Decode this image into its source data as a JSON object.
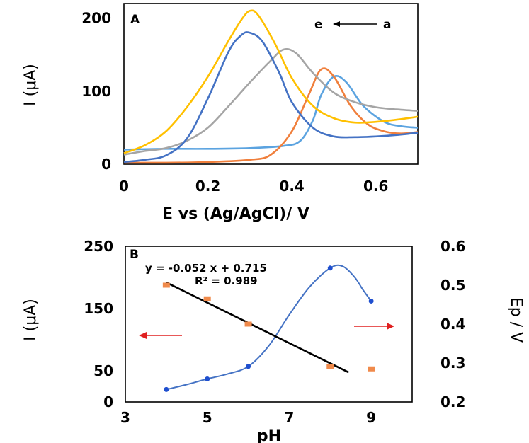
{
  "colors": {
    "a": "#5BA3E0",
    "b": "#F07F3C",
    "c": "#A5A5A5",
    "d": "#FFC000",
    "e": "#4472C4",
    "current": "#4472C4",
    "potential": "#F08A4B",
    "fit": "#000000",
    "arrow": "#E02020"
  },
  "chart_data": [
    {
      "type": "line",
      "panel_label": "A",
      "annotation": {
        "start": "e",
        "end": "a"
      },
      "xlabel": "E vs (Ag/AgCl)/ V",
      "ylabel": "I (μA)",
      "xlim": [
        0,
        0.7
      ],
      "ylim": [
        0,
        220
      ],
      "xticks": [
        "0",
        "0.2",
        "0.4",
        "0.6"
      ],
      "xtick_values": [
        0,
        0.2,
        0.4,
        0.6
      ],
      "yticks": [
        "0",
        "100",
        "200"
      ],
      "ytick_values": [
        0,
        100,
        200
      ],
      "series": [
        {
          "key": "a",
          "points": [
            [
              0,
              20
            ],
            [
              0.1,
              21
            ],
            [
              0.2,
              21
            ],
            [
              0.3,
              22
            ],
            [
              0.38,
              25
            ],
            [
              0.42,
              32
            ],
            [
              0.45,
              60
            ],
            [
              0.47,
              95
            ],
            [
              0.5,
              120
            ],
            [
              0.53,
              112
            ],
            [
              0.57,
              80
            ],
            [
              0.62,
              58
            ],
            [
              0.66,
              52
            ],
            [
              0.7,
              50
            ]
          ]
        },
        {
          "key": "b",
          "points": [
            [
              0,
              2
            ],
            [
              0.1,
              2
            ],
            [
              0.2,
              3
            ],
            [
              0.3,
              6
            ],
            [
              0.35,
              13
            ],
            [
              0.4,
              45
            ],
            [
              0.44,
              95
            ],
            [
              0.47,
              130
            ],
            [
              0.5,
              120
            ],
            [
              0.54,
              80
            ],
            [
              0.58,
              55
            ],
            [
              0.62,
              45
            ],
            [
              0.66,
              42
            ],
            [
              0.7,
              44
            ]
          ]
        },
        {
          "key": "c",
          "points": [
            [
              0,
              13
            ],
            [
              0.05,
              18
            ],
            [
              0.1,
              22
            ],
            [
              0.15,
              32
            ],
            [
              0.2,
              50
            ],
            [
              0.25,
              80
            ],
            [
              0.3,
              112
            ],
            [
              0.35,
              142
            ],
            [
              0.38,
              157
            ],
            [
              0.41,
              152
            ],
            [
              0.45,
              125
            ],
            [
              0.5,
              98
            ],
            [
              0.55,
              85
            ],
            [
              0.6,
              78
            ],
            [
              0.65,
              75
            ],
            [
              0.7,
              73
            ]
          ]
        },
        {
          "key": "d",
          "points": [
            [
              0,
              15
            ],
            [
              0.05,
              26
            ],
            [
              0.1,
              45
            ],
            [
              0.15,
              78
            ],
            [
              0.2,
              120
            ],
            [
              0.25,
              170
            ],
            [
              0.28,
              198
            ],
            [
              0.3,
              210
            ],
            [
              0.32,
              204
            ],
            [
              0.36,
              165
            ],
            [
              0.4,
              118
            ],
            [
              0.45,
              80
            ],
            [
              0.5,
              63
            ],
            [
              0.55,
              57
            ],
            [
              0.6,
              58
            ],
            [
              0.65,
              61
            ],
            [
              0.7,
              65
            ]
          ]
        },
        {
          "key": "e",
          "points": [
            [
              0,
              3
            ],
            [
              0.05,
              6
            ],
            [
              0.1,
              12
            ],
            [
              0.15,
              35
            ],
            [
              0.2,
              90
            ],
            [
              0.25,
              155
            ],
            [
              0.28,
              177
            ],
            [
              0.3,
              180
            ],
            [
              0.33,
              168
            ],
            [
              0.37,
              125
            ],
            [
              0.4,
              85
            ],
            [
              0.45,
              50
            ],
            [
              0.5,
              38
            ],
            [
              0.55,
              37
            ],
            [
              0.6,
              38
            ],
            [
              0.65,
              40
            ],
            [
              0.7,
              43
            ]
          ]
        }
      ]
    },
    {
      "type": "scatter",
      "panel_label": "B",
      "xlabel": "pH",
      "ylabel_left": "I (μA)",
      "ylabel_right": "Ep / V",
      "xlim": [
        3,
        10
      ],
      "ylim_left": [
        0,
        250
      ],
      "ylim_right": [
        0.2,
        0.6
      ],
      "xticks": [
        "3",
        "5",
        "7",
        "9"
      ],
      "xtick_values": [
        3,
        5,
        7,
        9
      ],
      "yticks_left": [
        "0",
        "50",
        "150",
        "250"
      ],
      "ytick_left_values": [
        0,
        50,
        150,
        250
      ],
      "yticks_right": [
        "0.2",
        "0.3",
        "0.4",
        "0.5",
        "0.6"
      ],
      "ytick_right_values": [
        0.2,
        0.3,
        0.4,
        0.5,
        0.6
      ],
      "equation": "y = -0.052 x + 0.715",
      "r2": "R² = 0.989",
      "current_points": {
        "x": [
          4,
          5,
          6,
          8,
          9
        ],
        "y": [
          20,
          37,
          57,
          215,
          162
        ]
      },
      "current_curve": [
        [
          4,
          20
        ],
        [
          4.5,
          28
        ],
        [
          5,
          37
        ],
        [
          5.5,
          45
        ],
        [
          6,
          57
        ],
        [
          6.5,
          90
        ],
        [
          7,
          140
        ],
        [
          7.5,
          185
        ],
        [
          8,
          215
        ],
        [
          8.3,
          218
        ],
        [
          8.6,
          200
        ],
        [
          8.8,
          180
        ],
        [
          9,
          162
        ]
      ],
      "potential_points": {
        "x": [
          4,
          5,
          6,
          8,
          9
        ],
        "y": [
          0.5,
          0.465,
          0.4,
          0.29,
          0.285
        ]
      },
      "fit_line": {
        "x": [
          4,
          8.45
        ],
        "y": [
          0.507,
          0.276
        ]
      }
    }
  ]
}
